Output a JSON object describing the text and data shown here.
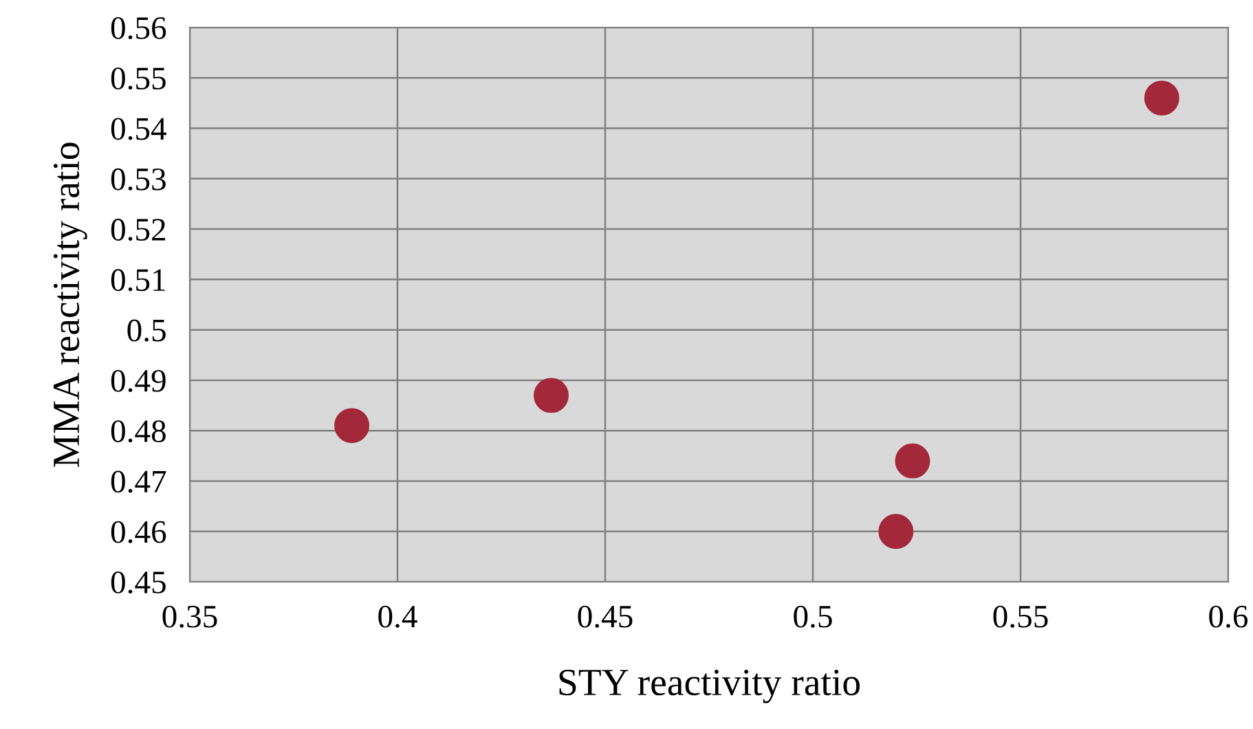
{
  "chart_data": {
    "type": "scatter",
    "xlabel": "STY reactivity ratio",
    "ylabel": "MMA reactivity ratio",
    "x": [
      0.389,
      0.437,
      0.524,
      0.52,
      0.584
    ],
    "series": [
      {
        "color": "#a3283a",
        "values": [
          0.481,
          0.487,
          0.474,
          0.46,
          0.546
        ]
      }
    ],
    "xlim": [
      0.35,
      0.6
    ],
    "xticks": [
      0.35,
      0.4,
      0.45,
      0.5,
      0.55,
      0.6
    ],
    "ylim": [
      0.45,
      0.56
    ],
    "yticks": [
      0.45,
      0.46,
      0.47,
      0.48,
      0.49,
      0.5,
      0.51,
      0.52,
      0.53,
      0.54,
      0.55,
      0.56
    ],
    "grid": true,
    "marker": "circle",
    "legend": false
  }
}
